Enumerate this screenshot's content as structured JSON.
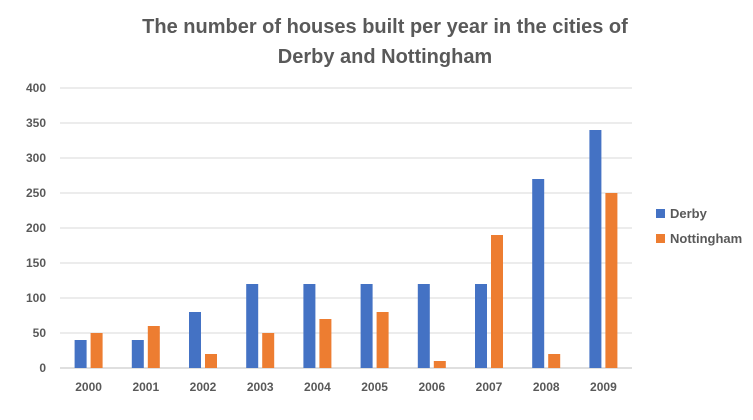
{
  "chart_data": {
    "type": "bar",
    "title_lines": [
      "The number of houses built per year in the cities of",
      "Derby and Nottingham"
    ],
    "categories": [
      "2000",
      "2001",
      "2002",
      "2003",
      "2004",
      "2005",
      "2006",
      "2007",
      "2008",
      "2009"
    ],
    "series": [
      {
        "name": "Derby",
        "color": "#4472C4",
        "values": [
          40,
          40,
          80,
          120,
          120,
          120,
          120,
          120,
          270,
          340
        ]
      },
      {
        "name": "Nottingham",
        "color": "#ED7D31",
        "values": [
          50,
          60,
          20,
          50,
          70,
          80,
          10,
          190,
          20,
          250
        ]
      }
    ],
    "ylim": [
      0,
      400
    ],
    "yticks": [
      "0",
      "50",
      "100",
      "150",
      "200",
      "250",
      "300",
      "350",
      "400"
    ],
    "grid": true,
    "legend_position": "right"
  }
}
